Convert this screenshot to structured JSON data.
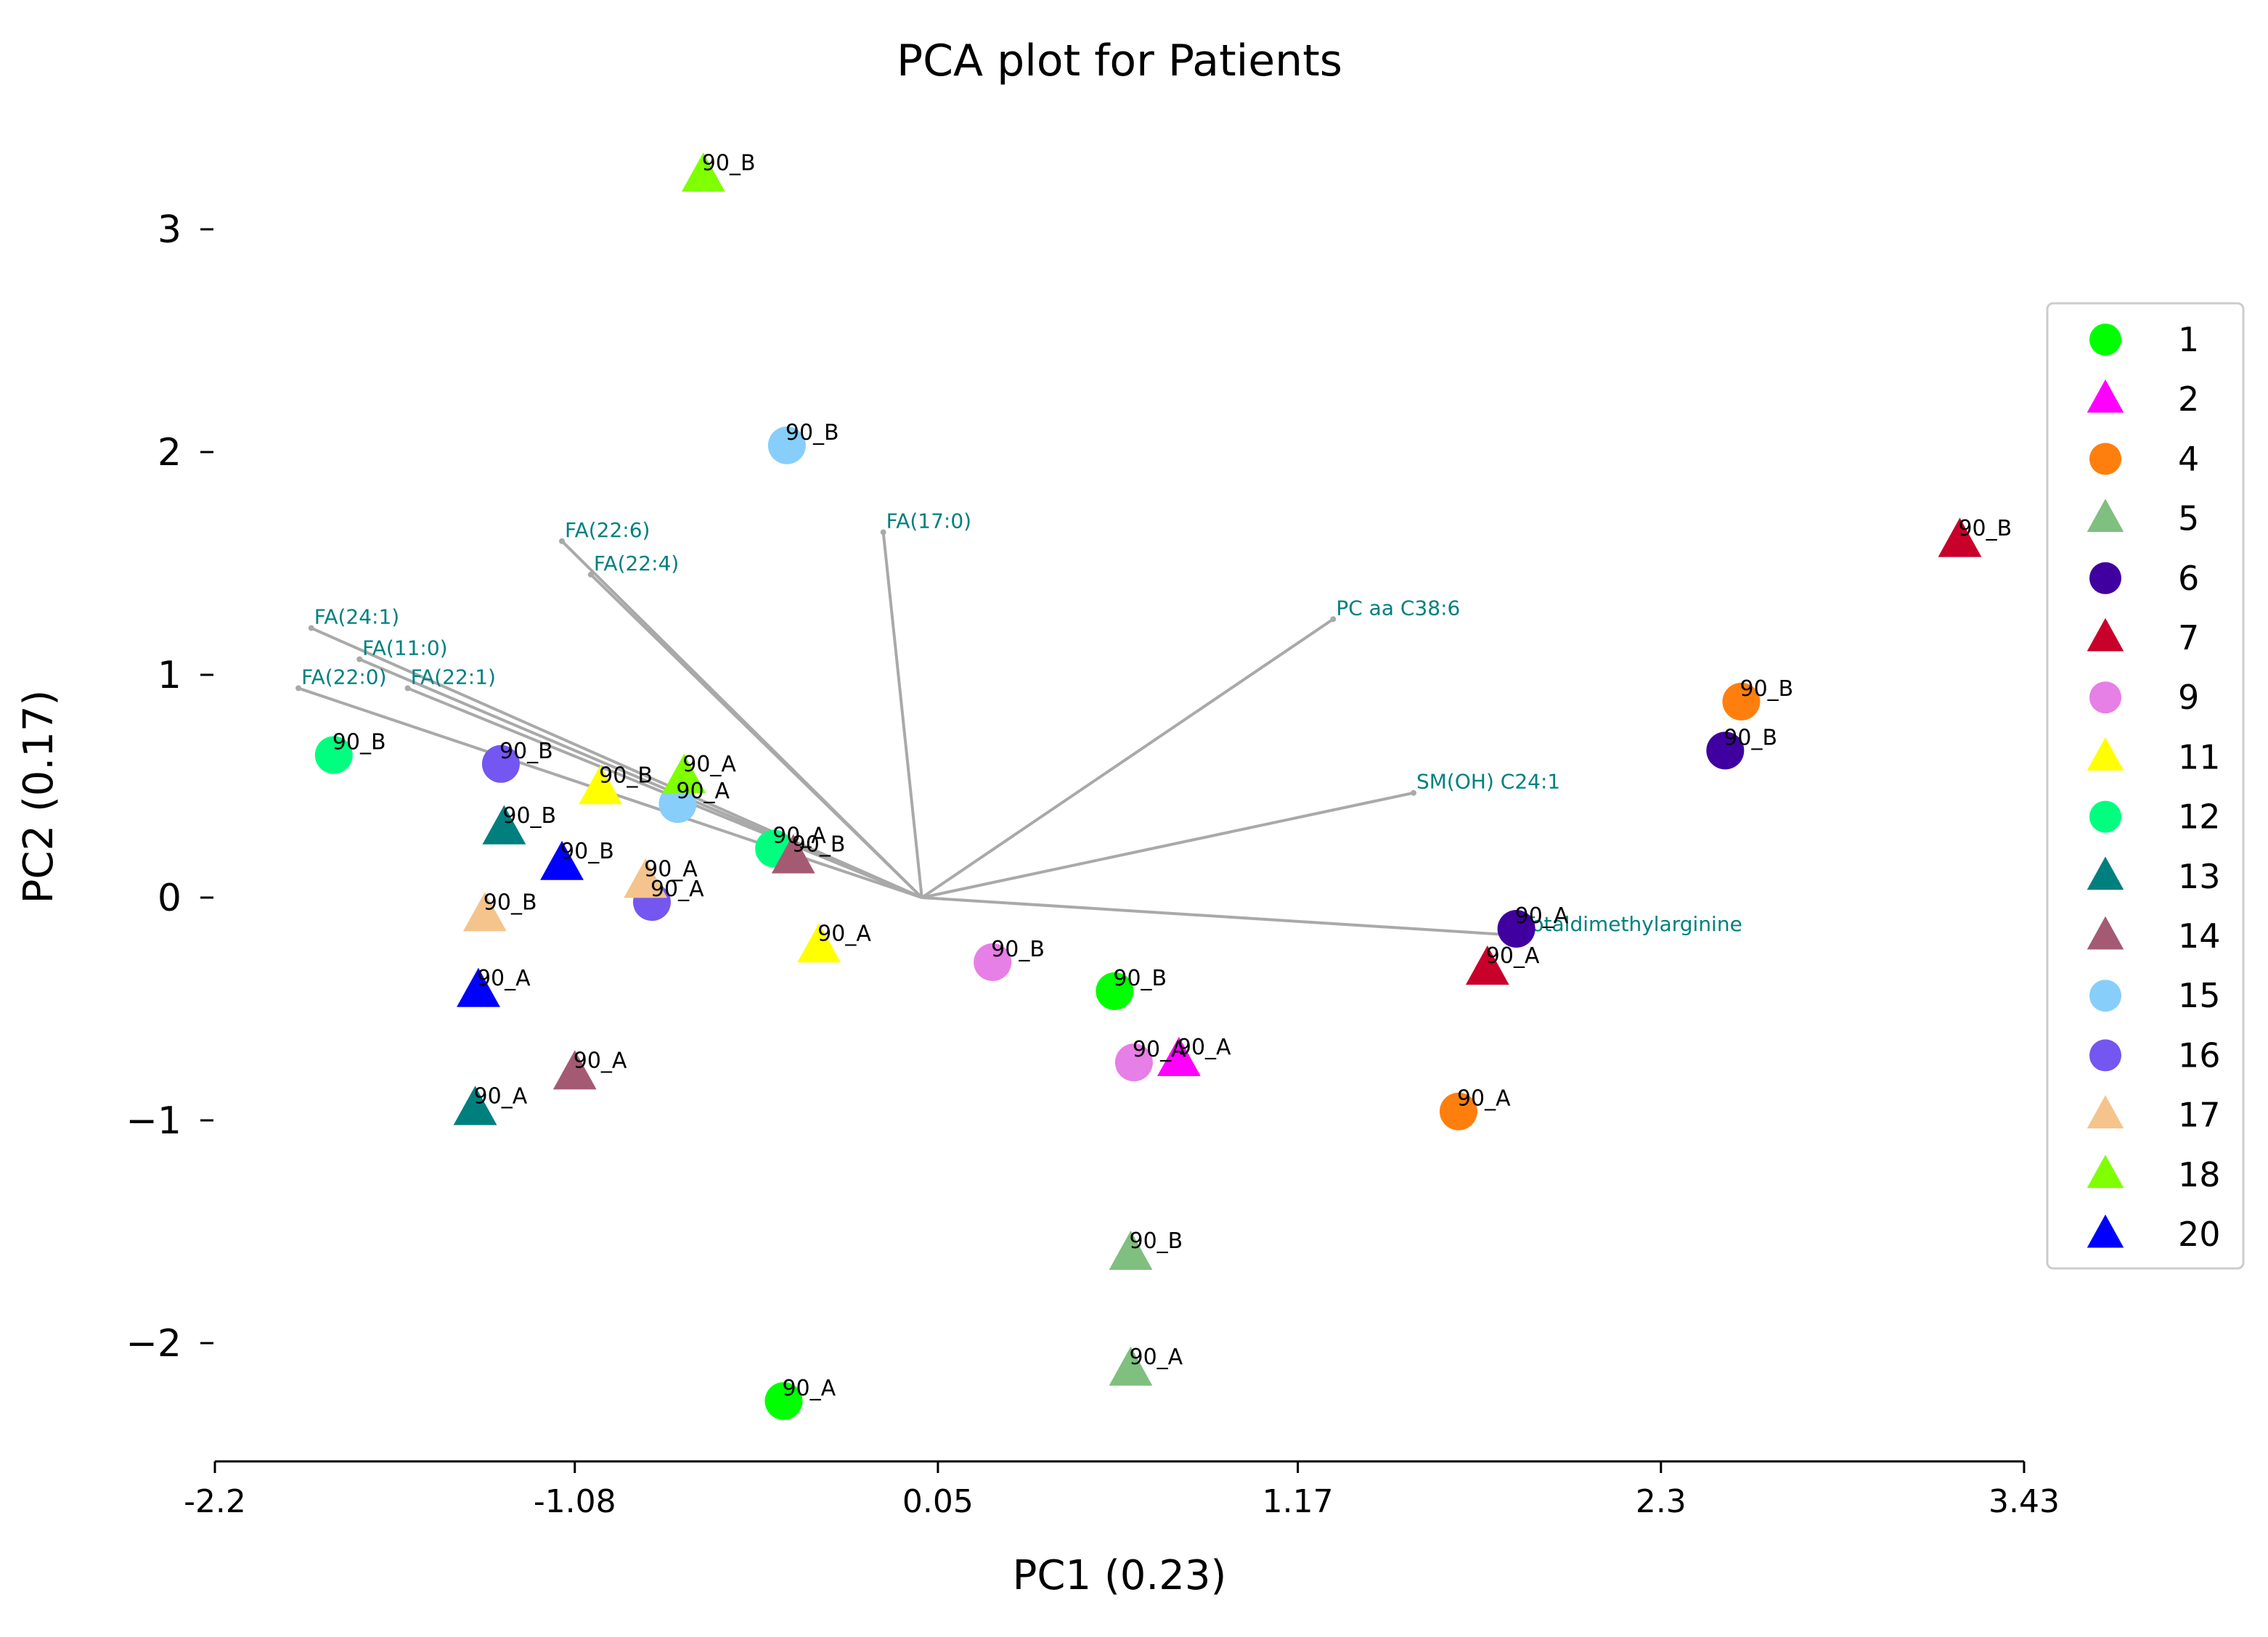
{
  "chart_data": {
    "type": "scatter",
    "title": "PCA plot for Patients",
    "xlabel": "PC1 (0.23)",
    "ylabel": "PC2 (0.17)",
    "xlim": [
      -2.2,
      3.43
    ],
    "ylim": [
      -2.55,
      3.35
    ],
    "x_ticks": [
      -2.2,
      -1.08,
      0.05,
      1.17,
      2.3,
      3.43
    ],
    "x_tick_labels": [
      "-2.2",
      "-1.08",
      "0.05",
      "1.17",
      "2.3",
      "3.43"
    ],
    "y_ticks": [
      3,
      2,
      1,
      0,
      -1,
      -2
    ],
    "y_tick_labels": [
      "3",
      "2",
      "1",
      "0",
      "−1",
      "−2"
    ],
    "grid": false,
    "legend_position": "right",
    "series": [
      {
        "name": "1",
        "color": "#00ff00",
        "marker": "circle",
        "points": [
          {
            "x": 0.6,
            "y": -0.42,
            "label": "90_B"
          },
          {
            "x": -0.43,
            "y": -2.26,
            "label": "90_A"
          }
        ]
      },
      {
        "name": "2",
        "color": "#ff00ff",
        "marker": "triangle",
        "points": [
          {
            "x": 0.8,
            "y": -0.73,
            "label": "90_A"
          }
        ]
      },
      {
        "name": "4",
        "color": "#ff7f0e",
        "marker": "circle",
        "points": [
          {
            "x": 2.55,
            "y": 0.88,
            "label": "90_B"
          },
          {
            "x": 1.67,
            "y": -0.96,
            "label": "90_A"
          }
        ]
      },
      {
        "name": "5",
        "color": "#7fbf7f",
        "marker": "triangle",
        "points": [
          {
            "x": 0.65,
            "y": -1.6,
            "label": "90_B"
          },
          {
            "x": 0.65,
            "y": -2.12,
            "label": "90_A"
          }
        ]
      },
      {
        "name": "6",
        "color": "#4000a0",
        "marker": "circle",
        "points": [
          {
            "x": 2.5,
            "y": 0.66,
            "label": "90_B"
          },
          {
            "x": 1.85,
            "y": -0.14,
            "label": "90_A"
          }
        ]
      },
      {
        "name": "7",
        "color": "#c8002a",
        "marker": "triangle",
        "points": [
          {
            "x": 3.23,
            "y": 1.6,
            "label": "90_B"
          },
          {
            "x": 1.76,
            "y": -0.32,
            "label": "90_A"
          }
        ]
      },
      {
        "name": "9",
        "color": "#e67fe6",
        "marker": "circle",
        "points": [
          {
            "x": 0.22,
            "y": -0.29,
            "label": "90_B"
          },
          {
            "x": 0.66,
            "y": -0.74,
            "label": "90_A"
          }
        ]
      },
      {
        "name": "11",
        "color": "#ffff00",
        "marker": "triangle",
        "points": [
          {
            "x": -1.0,
            "y": 0.49,
            "label": "90_B"
          },
          {
            "x": -0.32,
            "y": -0.22,
            "label": "90_A"
          }
        ]
      },
      {
        "name": "12",
        "color": "#00ff7f",
        "marker": "circle",
        "points": [
          {
            "x": -1.83,
            "y": 0.64,
            "label": "90_B"
          },
          {
            "x": -0.46,
            "y": 0.22,
            "label": "90_A"
          }
        ]
      },
      {
        "name": "13",
        "color": "#007f7f",
        "marker": "triangle",
        "points": [
          {
            "x": -1.3,
            "y": 0.31,
            "label": "90_B"
          },
          {
            "x": -1.39,
            "y": -0.95,
            "label": "90_A"
          }
        ]
      },
      {
        "name": "14",
        "color": "#a55a73",
        "marker": "triangle",
        "points": [
          {
            "x": -0.4,
            "y": 0.18,
            "label": "90_B"
          },
          {
            "x": -1.08,
            "y": -0.79,
            "label": "90_A"
          }
        ]
      },
      {
        "name": "15",
        "color": "#87cefa",
        "marker": "circle",
        "points": [
          {
            "x": -0.42,
            "y": 2.03,
            "label": "90_B"
          },
          {
            "x": -0.76,
            "y": 0.42,
            "label": "90_A"
          }
        ]
      },
      {
        "name": "16",
        "color": "#7456f1",
        "marker": "circle",
        "points": [
          {
            "x": -1.31,
            "y": 0.6,
            "label": "90_B"
          },
          {
            "x": -0.84,
            "y": -0.02,
            "label": "90_A"
          }
        ]
      },
      {
        "name": "17",
        "color": "#f4c48c",
        "marker": "triangle",
        "points": [
          {
            "x": -1.36,
            "y": -0.08,
            "label": "90_B"
          },
          {
            "x": -0.86,
            "y": 0.07,
            "label": "90_A"
          }
        ]
      },
      {
        "name": "18",
        "color": "#7fff00",
        "marker": "triangle",
        "points": [
          {
            "x": -0.68,
            "y": 3.24,
            "label": "90_B"
          },
          {
            "x": -0.74,
            "y": 0.54,
            "label": "90_A"
          }
        ]
      },
      {
        "name": "20",
        "color": "#0000ff",
        "marker": "triangle",
        "points": [
          {
            "x": -1.12,
            "y": 0.15,
            "label": "90_B"
          },
          {
            "x": -1.38,
            "y": -0.42,
            "label": "90_A"
          }
        ]
      }
    ],
    "loadings": {
      "origin": [
        0.0,
        0.0
      ],
      "color": "#a9a9a9",
      "label_color": "#008080",
      "vectors": [
        {
          "name": "FA(22:6)",
          "x": -1.12,
          "y": 1.6
        },
        {
          "name": "FA(22:4)",
          "x": -1.03,
          "y": 1.45
        },
        {
          "name": "FA(17:0)",
          "x": -0.12,
          "y": 1.64
        },
        {
          "name": "FA(24:1)",
          "x": -1.9,
          "y": 1.21
        },
        {
          "name": "FA(11:0)",
          "x": -1.75,
          "y": 1.07
        },
        {
          "name": "FA(22:0)",
          "x": -1.94,
          "y": 0.94
        },
        {
          "name": "FA(22:1)",
          "x": -1.6,
          "y": 0.94
        },
        {
          "name": "PC aa C38:6",
          "x": 1.28,
          "y": 1.25
        },
        {
          "name": "SM(OH) C24:1",
          "x": 1.53,
          "y": 0.47
        },
        {
          "name": "Totaldimethylarginine",
          "x": 1.86,
          "y": -0.17
        }
      ]
    }
  }
}
